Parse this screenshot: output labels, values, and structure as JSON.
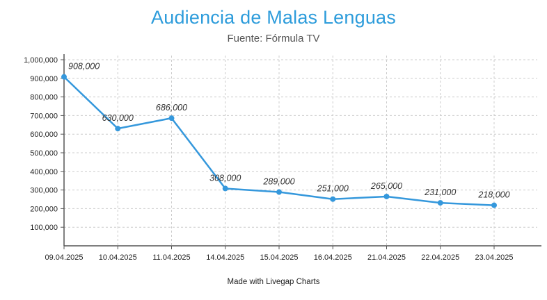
{
  "header": {
    "title": "Audiencia de Malas Lenguas",
    "subtitle": "Fuente: Fórmula TV"
  },
  "footer": {
    "credit": "Made with Livegap Charts"
  },
  "colors": {
    "title": "#2d9cdb",
    "line": "#3598dc",
    "grid": "#cccccc",
    "axis": "#555555",
    "label": "#333333"
  },
  "chart_data": {
    "type": "line",
    "title": "Audiencia de Malas Lenguas",
    "subtitle": "Fuente: Fórmula TV",
    "categories": [
      "09.04.2025",
      "10.04.2025",
      "11.04.2025",
      "14.04.2025",
      "15.04.2025",
      "16.04.2025",
      "21.04.2025",
      "22.04.2025",
      "23.04.2025"
    ],
    "values": [
      908000,
      630000,
      686000,
      308000,
      289000,
      251000,
      265000,
      231000,
      218000
    ],
    "value_labels": [
      "908,000",
      "630,000",
      "686,000",
      "308,000",
      "289,000",
      "251,000",
      "265,000",
      "231,000",
      "218,000"
    ],
    "y_tick_values": [
      100000,
      200000,
      300000,
      400000,
      500000,
      600000,
      700000,
      800000,
      900000,
      1000000
    ],
    "y_tick_labels": [
      "100,000",
      "200,000",
      "300,000",
      "400,000",
      "500,000",
      "600,000",
      "700,000",
      "800,000",
      "900,000",
      "1,000,000"
    ],
    "ylim": [
      0,
      1000000
    ],
    "xlabel": "",
    "ylabel": "",
    "grid": "dashed",
    "legend": "none"
  }
}
